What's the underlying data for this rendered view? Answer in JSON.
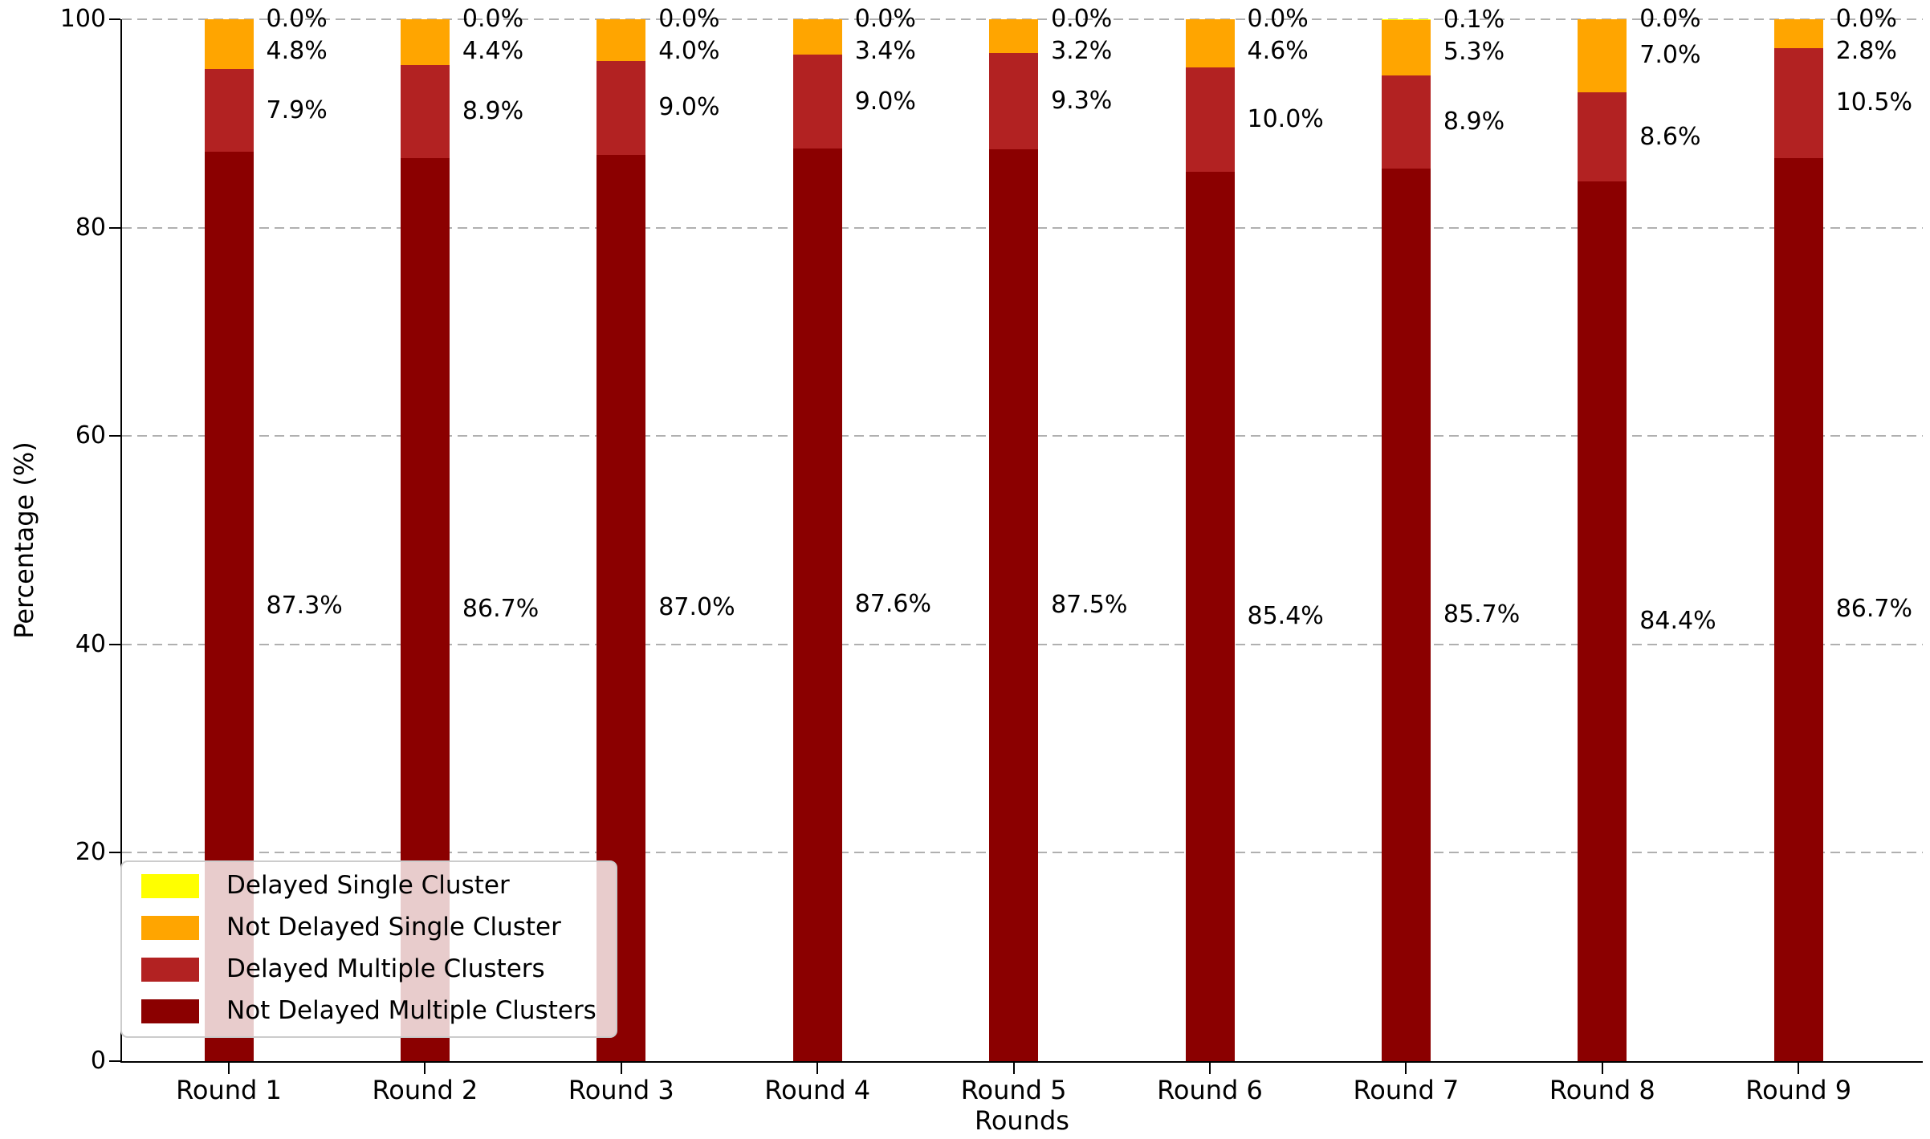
{
  "chart_data": {
    "type": "bar",
    "stacked": true,
    "title": "",
    "xlabel": "Rounds",
    "ylabel": "Percentage (%)",
    "ylim": [
      0,
      100
    ],
    "yticks": [
      0,
      20,
      40,
      60,
      80,
      100
    ],
    "grid": "horizontal dashed gridlines",
    "grid_color": "#b0b0b0",
    "categories": [
      "Round 1",
      "Round 2",
      "Round 3",
      "Round 4",
      "Round 5",
      "Round 6",
      "Round 7",
      "Round 8",
      "Round 9"
    ],
    "series": [
      {
        "name": "Not Delayed Multiple Clusters",
        "color": "#8B0000",
        "values": [
          87.3,
          86.7,
          87.0,
          87.6,
          87.5,
          85.4,
          85.7,
          84.4,
          86.7
        ]
      },
      {
        "name": "Delayed Multiple Clusters",
        "color": "#B22222",
        "values": [
          7.9,
          8.9,
          9.0,
          9.0,
          9.3,
          10.0,
          8.9,
          8.6,
          10.5
        ]
      },
      {
        "name": "Not Delayed Single Cluster",
        "color": "#FFA500",
        "values": [
          4.8,
          4.4,
          4.0,
          3.4,
          3.2,
          4.6,
          5.3,
          7.0,
          2.8
        ]
      },
      {
        "name": "Delayed Single Cluster",
        "color": "#FFFF00",
        "values": [
          0.0,
          0.0,
          0.0,
          0.0,
          0.0,
          0.0,
          0.1,
          0.0,
          0.0
        ]
      }
    ],
    "bar_label_format": "one decimal place + %",
    "legend": {
      "position": "lower left",
      "entries": [
        {
          "label": "Delayed Single Cluster",
          "color": "#FFFF00"
        },
        {
          "label": "Not Delayed Single Cluster",
          "color": "#FFA500"
        },
        {
          "label": "Delayed Multiple Clusters",
          "color": "#B22222"
        },
        {
          "label": "Not Delayed Multiple Clusters",
          "color": "#8B0000"
        }
      ]
    }
  }
}
